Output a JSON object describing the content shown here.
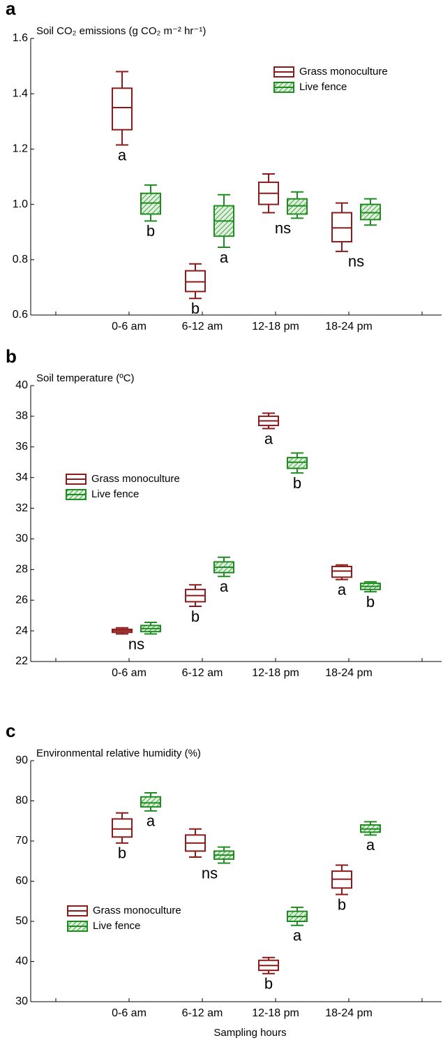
{
  "chart_data": [
    {
      "type": "box",
      "panel": "a",
      "title": "Soil CO₂ emissions (g CO₂ m⁻² hr⁻¹)",
      "legend": "upper right",
      "categories": [
        "0-6 am",
        "6-12 am",
        "12-18 pm",
        "18-24 pm"
      ],
      "ylim": [
        0.6,
        1.6
      ],
      "yticks": [
        {
          "value": 0.6,
          "label": "0.6"
        },
        {
          "value": 0.8,
          "label": "0.8"
        },
        {
          "value": 1.0,
          "label": "1.0"
        },
        {
          "value": 1.2,
          "label": "1.2"
        },
        {
          "value": 1.4,
          "label": "1.4"
        },
        {
          "value": 1.6,
          "label": "1.6"
        }
      ],
      "series": [
        {
          "name": "Grass monoculture",
          "color": "#8b1a1a",
          "values": [
            [
              1.215,
              1.27,
              1.35,
              1.42,
              1.48
            ],
            [
              0.66,
              0.685,
              0.72,
              0.76,
              0.785
            ],
            [
              0.97,
              1.0,
              1.04,
              1.08,
              1.11
            ],
            [
              0.83,
              0.865,
              0.915,
              0.97,
              1.005
            ]
          ],
          "letters": [
            "a",
            "b",
            "ns",
            "ns"
          ]
        },
        {
          "name": "Live fence",
          "color": "#1e8c1e",
          "values": [
            [
              0.94,
              0.965,
              1.005,
              1.04,
              1.07
            ],
            [
              0.845,
              0.885,
              0.94,
              0.995,
              1.035
            ],
            [
              0.95,
              0.965,
              0.995,
              1.02,
              1.045
            ],
            [
              0.925,
              0.945,
              0.97,
              1.0,
              1.02
            ]
          ],
          "letters": [
            "b",
            "a",
            null,
            null
          ]
        }
      ]
    },
    {
      "type": "box",
      "panel": "b",
      "title": "Soil temperature (ºC)",
      "legend": "center left",
      "categories": [
        "0-6 am",
        "6-12 am",
        "12-18 pm",
        "18-24 pm"
      ],
      "ylim": [
        22,
        40
      ],
      "yticks": [
        22,
        24,
        26,
        28,
        30,
        32,
        34,
        36,
        38,
        40
      ],
      "series": [
        {
          "name": "Grass monoculture",
          "color": "#8b1a1a",
          "values": [
            [
              23.8,
              23.9,
              24.0,
              24.1,
              24.2
            ],
            [
              25.6,
              25.9,
              26.3,
              26.7,
              27.0
            ],
            [
              37.2,
              37.4,
              37.7,
              38.0,
              38.2
            ],
            [
              27.35,
              27.5,
              27.9,
              28.2,
              28.3
            ]
          ],
          "letters": [
            "ns",
            "b",
            "a",
            "a"
          ]
        },
        {
          "name": "Live fence",
          "color": "#1e8c1e",
          "values": [
            [
              23.8,
              23.95,
              24.15,
              24.35,
              24.55
            ],
            [
              27.55,
              27.8,
              28.15,
              28.5,
              28.8
            ],
            [
              34.3,
              34.6,
              35.0,
              35.3,
              35.6
            ],
            [
              26.55,
              26.7,
              26.9,
              27.1,
              27.2
            ]
          ],
          "letters": [
            null,
            "a",
            "b",
            "b"
          ]
        }
      ]
    },
    {
      "type": "box",
      "panel": "c",
      "title": "Environmental relative humidity (%)",
      "legend": "lower left",
      "xlabel": "Sampling hours",
      "categories": [
        "0-6 am",
        "6-12 am",
        "12-18 pm",
        "18-24 pm"
      ],
      "ylim": [
        30,
        90
      ],
      "yticks": [
        30,
        40,
        50,
        60,
        70,
        80,
        90
      ],
      "series": [
        {
          "name": "Grass monoculture",
          "color": "#8b1a1a",
          "values": [
            [
              69.5,
              71,
              73,
              75.5,
              77
            ],
            [
              66,
              67.5,
              69.5,
              71.5,
              73
            ],
            [
              37,
              37.8,
              39,
              40.3,
              41
            ],
            [
              56.7,
              58.3,
              60.5,
              62.5,
              64
            ]
          ],
          "letters": [
            "b",
            "ns",
            "b",
            "b"
          ]
        },
        {
          "name": "Live fence",
          "color": "#1e8c1e",
          "values": [
            [
              77.5,
              78.5,
              79.5,
              81,
              82
            ],
            [
              64.5,
              65.5,
              66.5,
              67.5,
              68.5
            ],
            [
              49,
              50,
              51.2,
              52.5,
              53.5
            ],
            [
              71.5,
              72.2,
              73,
              74,
              74.8
            ]
          ],
          "letters": [
            "a",
            null,
            "a",
            "a"
          ]
        }
      ]
    }
  ]
}
